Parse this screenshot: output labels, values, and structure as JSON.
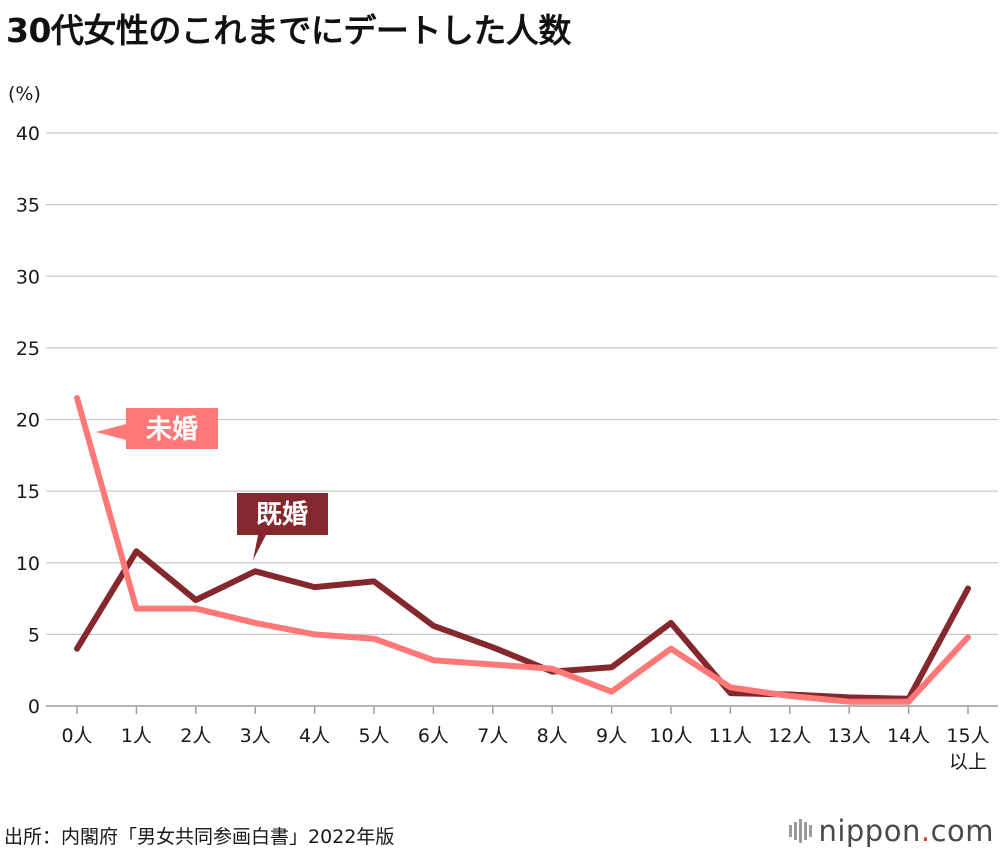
{
  "title": "30代女性のこれまでにデートした人数",
  "source": "出所：内閣府「男女共同参画白書」2022年版",
  "brand": {
    "name_part1": "nippon",
    "dot": ".",
    "name_part2": "com"
  },
  "chart_data": {
    "type": "line",
    "title": "30代女性のこれまでにデートした人数",
    "ylabel": "(%)",
    "xlabel": "",
    "ylim": [
      0,
      40
    ],
    "yticks": [
      0,
      5,
      10,
      15,
      20,
      25,
      30,
      35,
      40
    ],
    "grid": true,
    "categories": [
      "0人",
      "1人",
      "2人",
      "3人",
      "4人",
      "5人",
      "6人",
      "7人",
      "8人",
      "9人",
      "10人",
      "11人",
      "12人",
      "13人",
      "14人",
      "15人\n以上"
    ],
    "series": [
      {
        "name": "既婚",
        "color": "#84282e",
        "values": [
          4.0,
          10.8,
          7.4,
          9.4,
          8.3,
          8.7,
          5.6,
          4.1,
          2.4,
          2.7,
          5.8,
          0.9,
          0.8,
          0.6,
          0.5,
          8.2
        ]
      },
      {
        "name": "未婚",
        "color": "#ff7878",
        "values": [
          21.5,
          6.8,
          6.8,
          5.8,
          5.0,
          4.7,
          3.2,
          2.9,
          2.6,
          1.0,
          4.0,
          1.3,
          0.7,
          0.3,
          0.3,
          4.8
        ]
      }
    ]
  }
}
